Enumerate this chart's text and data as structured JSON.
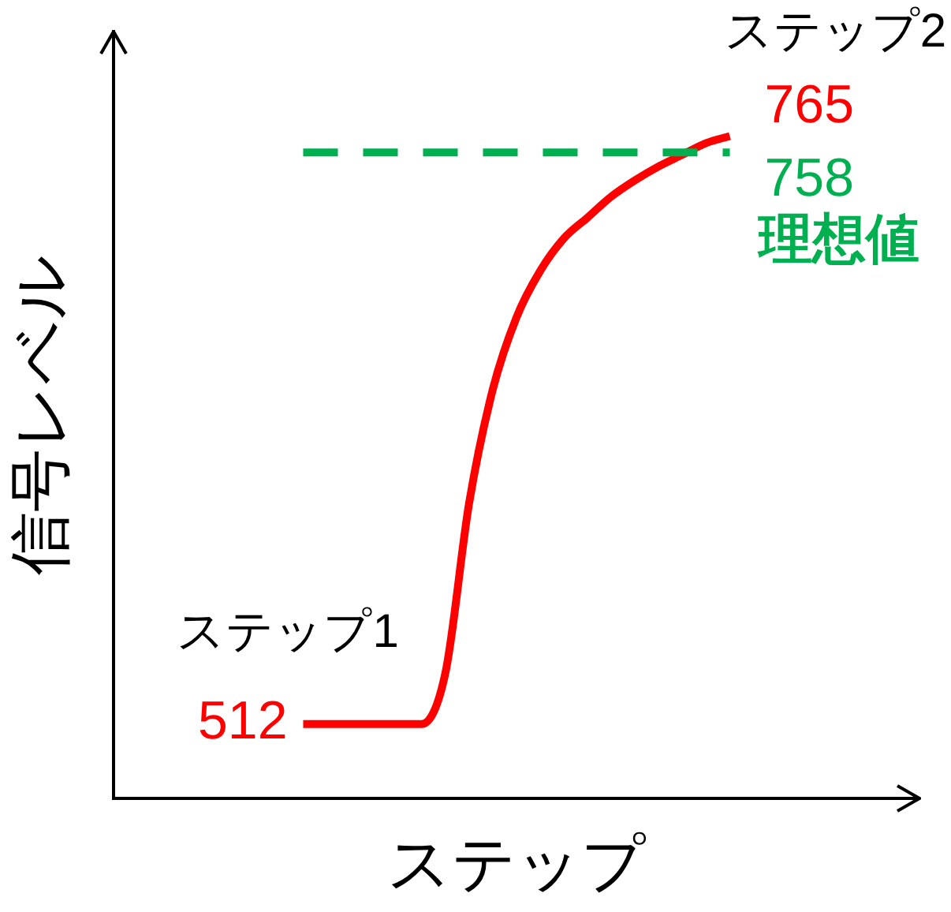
{
  "chart_data": {
    "type": "line",
    "xlabel": "ステップ",
    "ylabel": "信号レベル",
    "categories": [
      null,
      null,
      null,
      null,
      null,
      null,
      null,
      null,
      null,
      null,
      null,
      null,
      null,
      null,
      null,
      null,
      null,
      null,
      null,
      null,
      null,
      null,
      null,
      null,
      null,
      null,
      null,
      null,
      null,
      null,
      null,
      null,
      null,
      null,
      null
    ],
    "series": [
      {
        "color": "#ff0000",
        "values": [
          null,
          null,
          null,
          null,
          null,
          null,
          null,
          null,
          512,
          512,
          512,
          512,
          512,
          512,
          534,
          607,
          656,
          687,
          707,
          721,
          730,
          739,
          746,
          752,
          757,
          762,
          765,
          null,
          null,
          null,
          null,
          null,
          null,
          null,
          null
        ],
        "value_labels": [
          null,
          null,
          null,
          null,
          null,
          null,
          null,
          null,
          "512",
          null,
          null,
          null,
          null,
          null,
          null,
          null,
          null,
          null,
          null,
          null,
          null,
          null,
          null,
          null,
          null,
          null,
          "765",
          null,
          null,
          null,
          null,
          null,
          null,
          null,
          null
        ]
      }
    ],
    "ylim": [
      480,
      810
    ],
    "tick_labels": false,
    "grid": false,
    "legend": false,
    "marker": "none",
    "line_style": "solid",
    "ref_lines": [
      {
        "axis": "y",
        "value": 758,
        "label": "758",
        "color": "#00b050",
        "line_style": "dashed"
      }
    ],
    "annotations": [
      "ステップ1",
      "ステップ2",
      "理想値"
    ]
  }
}
